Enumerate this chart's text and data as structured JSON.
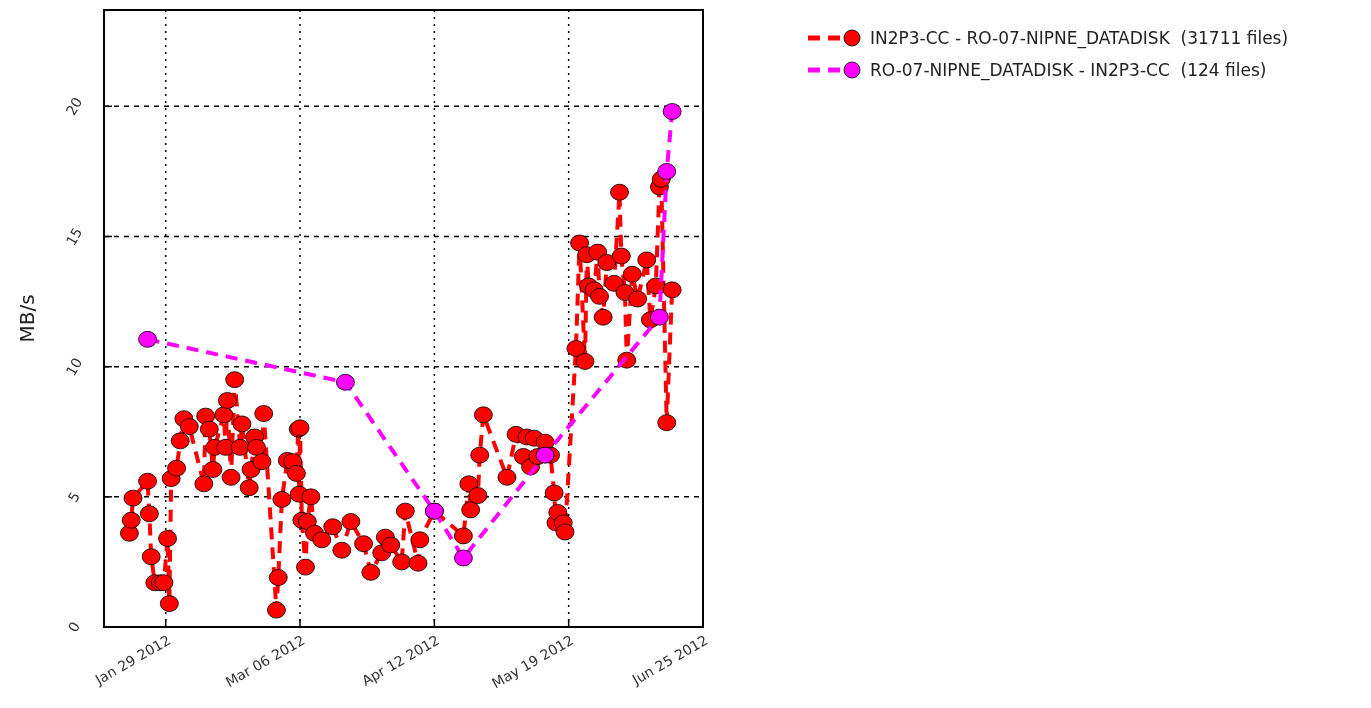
{
  "chart_data": {
    "type": "line",
    "ylabel": "MB/s",
    "xlim": [
      "2012-01-12",
      "2012-06-25"
    ],
    "xticks": [
      {
        "value": "2012-01-29",
        "label": "Jan 29 2012"
      },
      {
        "value": "2012-03-06",
        "label": "Mar 06 2012"
      },
      {
        "value": "2012-04-12",
        "label": "Apr 12 2012"
      },
      {
        "value": "2012-05-19",
        "label": "May 19 2012"
      },
      {
        "value": "2012-06-25",
        "label": "Jun 25 2012"
      }
    ],
    "ylim": [
      0,
      23.7
    ],
    "yticks": [
      0,
      5,
      10,
      15,
      20
    ],
    "grid": true,
    "legend": "top right",
    "marker": "circle",
    "line_style": "dashed",
    "series": [
      {
        "name": "IN2P3-CC - RO-07-NIPNE_DATADISK  (31711 files)",
        "color": "#ff0000",
        "x": [
          "2012-01-19T00:00",
          "2012-01-19T12:00",
          "2012-01-20T00:00",
          "2012-01-24T00:00",
          "2012-01-24T12:00",
          "2012-01-25T00:00",
          "2012-01-26T00:00",
          "2012-01-27T12:00",
          "2012-01-28T12:00",
          "2012-01-29T12:00",
          "2012-01-30T00:00",
          "2012-01-30T12:00",
          "2012-02-01T00:00",
          "2012-02-02T00:00",
          "2012-02-03T00:00",
          "2012-02-04T12:00",
          "2012-02-08T12:00",
          "2012-02-09T00:00",
          "2012-02-10T00:00",
          "2012-02-11T00:00",
          "2012-02-11T12:00",
          "2012-02-14T00:00",
          "2012-02-14T12:00",
          "2012-02-15T00:00",
          "2012-02-16T00:00",
          "2012-02-17T00:00",
          "2012-02-18T12:00",
          "2012-02-19T00:00",
          "2012-02-21T00:00",
          "2012-02-21T12:00",
          "2012-02-22T12:00",
          "2012-02-23T00:00",
          "2012-02-24T12:00",
          "2012-02-25T00:00",
          "2012-02-28T12:00",
          "2012-02-29T00:00",
          "2012-03-01T00:00",
          "2012-03-02T12:00",
          "2012-03-04T00:00",
          "2012-03-05T00:00",
          "2012-03-05T12:00",
          "2012-03-05T18:00",
          "2012-03-06T00:00",
          "2012-03-06T12:00",
          "2012-03-07T12:00",
          "2012-03-08T00:00",
          "2012-03-09T00:00",
          "2012-03-10T00:00",
          "2012-03-12T00:00",
          "2012-03-15T00:00",
          "2012-03-17T12:00",
          "2012-03-20T00:00",
          "2012-03-23T12:00",
          "2012-03-25T12:00",
          "2012-03-28T12:00",
          "2012-03-29T12:00",
          "2012-03-31T00:00",
          "2012-04-03T00:00",
          "2012-04-04T00:00",
          "2012-04-07T12:00",
          "2012-04-08T00:00",
          "2012-04-12T00:00",
          "2012-04-20T00:00",
          "2012-04-21T12:00",
          "2012-04-22T00:00",
          "2012-04-24T00:00",
          "2012-04-24T12:00",
          "2012-04-25T12:00",
          "2012-05-02T00:00",
          "2012-05-04T12:00",
          "2012-05-06T12:00",
          "2012-05-07T12:00",
          "2012-05-08T12:00",
          "2012-05-09T12:00",
          "2012-05-10T12:00",
          "2012-05-12T12:00",
          "2012-05-14T00:00",
          "2012-05-15T00:00",
          "2012-05-15T12:00",
          "2012-05-16T00:00",
          "2012-05-17T12:00",
          "2012-05-18T00:00",
          "2012-05-21T00:00",
          "2012-05-22T00:00",
          "2012-05-23T12:00",
          "2012-05-24T00:00",
          "2012-05-24T12:00",
          "2012-05-26T00:00",
          "2012-05-27T00:00",
          "2012-05-27T12:00",
          "2012-05-28T12:00",
          "2012-05-29T12:00",
          "2012-05-31T12:00",
          "2012-06-02T00:00",
          "2012-06-02T12:00",
          "2012-06-03T12:00",
          "2012-06-04T00:00",
          "2012-06-05T12:00",
          "2012-06-07T00:00",
          "2012-06-09T12:00",
          "2012-06-10T12:00",
          "2012-06-12T00:00",
          "2012-06-13T00:00",
          "2012-06-13T12:00",
          "2012-06-15T00:00",
          "2012-06-16T12:00"
        ],
        "values": [
          3.6,
          4.1,
          4.95,
          5.6,
          4.35,
          2.7,
          1.7,
          1.7,
          1.7,
          3.4,
          0.9,
          5.7,
          6.1,
          7.15,
          8.0,
          7.7,
          5.5,
          8.1,
          7.6,
          6.05,
          6.9,
          8.15,
          6.9,
          8.7,
          5.75,
          9.5,
          6.9,
          7.8,
          5.35,
          6.05,
          7.3,
          6.9,
          6.35,
          8.2,
          0.65,
          1.9,
          4.9,
          6.4,
          6.35,
          5.9,
          7.6,
          5.1,
          7.65,
          4.1,
          2.3,
          4.05,
          5.0,
          3.6,
          3.35,
          3.85,
          2.95,
          4.05,
          3.2,
          2.1,
          2.85,
          3.45,
          3.15,
          2.5,
          4.45,
          2.45,
          3.35,
          4.45,
          3.5,
          5.5,
          4.5,
          5.05,
          6.6,
          8.15,
          5.75,
          7.4,
          6.55,
          7.3,
          6.15,
          7.25,
          6.55,
          7.1,
          6.6,
          5.15,
          4.0,
          4.4,
          4.0,
          3.65,
          10.7,
          14.75,
          10.2,
          14.3,
          13.1,
          12.95,
          14.4,
          12.7,
          11.9,
          14.0,
          13.2,
          16.7,
          14.25,
          12.85,
          10.25,
          13.55,
          12.6,
          14.1,
          11.8,
          13.1,
          16.9,
          17.2,
          7.85,
          12.95
        ]
      },
      {
        "name": "RO-07-NIPNE_DATADISK - IN2P3-CC  (124 files)",
        "color": "#ff00ff",
        "x": [
          "2012-01-24T00:00",
          "2012-03-18T12:00",
          "2012-04-12T00:00",
          "2012-04-20T00:00",
          "2012-05-12T12:00",
          "2012-06-13T00:00",
          "2012-06-15T00:00",
          "2012-06-16T12:00"
        ],
        "values": [
          11.05,
          9.4,
          4.45,
          2.65,
          6.6,
          11.9,
          17.5,
          19.8
        ]
      }
    ]
  }
}
